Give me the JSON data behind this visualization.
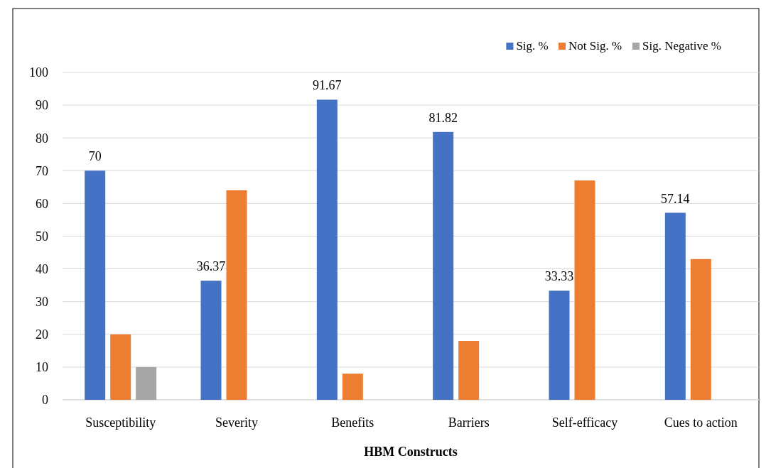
{
  "chart_data": {
    "type": "bar",
    "xlabel": "HBM Constructs",
    "categories": [
      "Susceptibility",
      "Severity",
      "Benefits",
      "Barriers",
      "Self-efficacy",
      "Cues to action"
    ],
    "series": [
      {
        "name": "Sig. %",
        "color": "#4472c4",
        "values": [
          70,
          36.37,
          91.67,
          81.82,
          33.33,
          57.14
        ],
        "value_labels": [
          "70",
          "36.37",
          "91.67",
          "81.82",
          "33.33",
          "57.14"
        ]
      },
      {
        "name": "Not Sig. %",
        "color": "#ed7d31",
        "values": [
          20,
          64,
          8,
          18,
          67,
          43
        ]
      },
      {
        "name": "Sig. Negative %",
        "color": "#a5a5a5",
        "values": [
          10,
          null,
          null,
          null,
          null,
          null
        ]
      }
    ],
    "ylim": [
      0,
      100
    ],
    "yticks": [
      0,
      10,
      20,
      30,
      40,
      50,
      60,
      70,
      80,
      90,
      100
    ],
    "grid": "y",
    "legend": "top right"
  }
}
